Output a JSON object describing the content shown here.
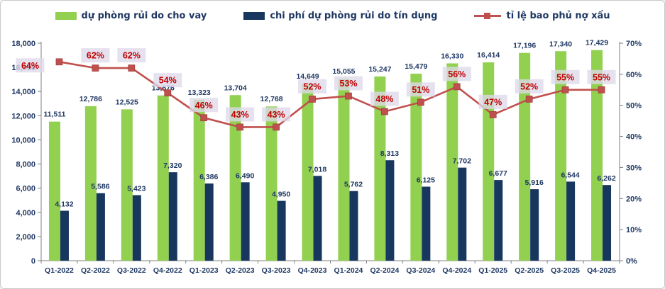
{
  "panel": {
    "background": "#FFFFFF",
    "border_color": "#C9C9C9"
  },
  "legend": [
    {
      "label": "dự phòng rủi do cho vay",
      "swatch": "green-bar",
      "color": "#92D050"
    },
    {
      "label": "chi phí dự phòng rủi do tín dụng",
      "swatch": "navy-bar",
      "color": "#17375E"
    },
    {
      "label": "tỉ lệ bao phủ nợ xấu",
      "swatch": "red-line-marker",
      "color": "#C0504D"
    }
  ],
  "chart_data": {
    "type": "bar+line",
    "categories": [
      "Q1-2022",
      "Q2-2022",
      "Q3-2022",
      "Q4-2022",
      "Q1-2023",
      "Q2-2023",
      "Q3-2023",
      "Q4-2023",
      "Q1-2024",
      "Q2-2024",
      "Q3-2024",
      "Q4-2024",
      "Q1-2025",
      "Q2-2025",
      "Q3-2025",
      "Q4-2025"
    ],
    "series": [
      {
        "name": "dự phòng rủi do cho vay",
        "type": "bar",
        "axis": "left",
        "color": "#92D050",
        "values": [
          11511,
          12786,
          12525,
          13676,
          13323,
          13704,
          12768,
          14649,
          15055,
          15247,
          15479,
          16330,
          16414,
          17196,
          17340,
          17429
        ]
      },
      {
        "name": "chi phí dự phòng rủi do tín dụng",
        "type": "bar",
        "axis": "left",
        "color": "#17375E",
        "values": [
          4132,
          5586,
          5423,
          7320,
          6386,
          6490,
          4950,
          7018,
          5762,
          8313,
          6125,
          7702,
          6677,
          5916,
          6544,
          6262
        ]
      },
      {
        "name": "tỉ lệ bao phủ nợ xấu",
        "type": "line",
        "axis": "right",
        "color": "#C0504D",
        "values": [
          64,
          62,
          62,
          54,
          46,
          43,
          43,
          52,
          53,
          48,
          51,
          56,
          47,
          52,
          55,
          55
        ],
        "unit": "%"
      }
    ],
    "left_axis": {
      "min": 0,
      "max": 18000,
      "step": 2000
    },
    "right_axis": {
      "min": 0,
      "max": 70,
      "step": 10,
      "suffix": "%"
    },
    "grid": false,
    "legend_position": "top",
    "data_labels": true
  },
  "styles": {
    "value_label_color": "#1F3864",
    "axis_label_color": "#1F3864",
    "axis_line_color": "#7F7F7F",
    "pct_label_text": "#C00000",
    "pct_label_bg": "#DED8EA",
    "line_color": "#C0504D",
    "green": "#92D050",
    "navy": "#17375E"
  }
}
